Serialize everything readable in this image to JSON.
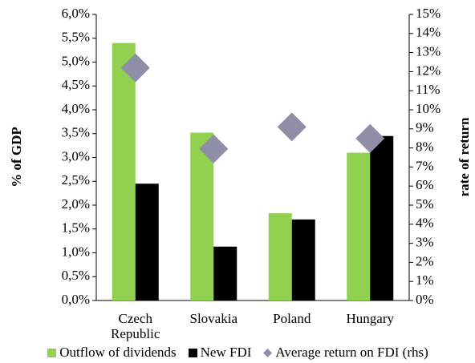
{
  "chart_data": {
    "type": "bar",
    "categories": [
      "Czech Republic",
      "Slovakia",
      "Poland",
      "Hungary"
    ],
    "series": [
      {
        "name": "Outflow of dividends",
        "color": "#92d050",
        "values": [
          5.4,
          3.52,
          1.83,
          3.1
        ]
      },
      {
        "name": "New FDI",
        "color": "#000000",
        "values": [
          2.45,
          1.13,
          1.7,
          3.45
        ]
      },
      {
        "name": "Average return on FDI (rhs)",
        "color": "#8e8ea6",
        "type": "scatter",
        "marker": "diamond",
        "axis": "y2",
        "values": [
          12.2,
          7.95,
          9.1,
          8.5
        ]
      }
    ],
    "y_label": "% of GDP",
    "y2_label": "rate of return",
    "ylim": [
      0,
      6
    ],
    "yticks": [
      {
        "value": 0,
        "label": "0,0%"
      },
      {
        "value": 0.5,
        "label": "0,5%"
      },
      {
        "value": 1,
        "label": "1,0%"
      },
      {
        "value": 1.5,
        "label": "1,5%"
      },
      {
        "value": 2,
        "label": "2,0%"
      },
      {
        "value": 2.5,
        "label": "2,5%"
      },
      {
        "value": 3,
        "label": "3,0%"
      },
      {
        "value": 3.5,
        "label": "3,5%"
      },
      {
        "value": 4,
        "label": "4,0%"
      },
      {
        "value": 4.5,
        "label": "4,5%"
      },
      {
        "value": 5,
        "label": "5,0%"
      },
      {
        "value": 5.5,
        "label": "5,5%"
      },
      {
        "value": 6,
        "label": "6,0%"
      }
    ],
    "y2lim": [
      0,
      15
    ],
    "y2ticks": [
      {
        "value": 0,
        "label": "0%"
      },
      {
        "value": 1,
        "label": "1%"
      },
      {
        "value": 2,
        "label": "2%"
      },
      {
        "value": 3,
        "label": "3%"
      },
      {
        "value": 4,
        "label": "4%"
      },
      {
        "value": 5,
        "label": "5%"
      },
      {
        "value": 6,
        "label": "6%"
      },
      {
        "value": 7,
        "label": "7%"
      },
      {
        "value": 8,
        "label": "8%"
      },
      {
        "value": 9,
        "label": "9%"
      },
      {
        "value": 10,
        "label": "10%"
      },
      {
        "value": 11,
        "label": "11%"
      },
      {
        "value": 12,
        "label": "12%"
      },
      {
        "value": 13,
        "label": "13%"
      },
      {
        "value": 14,
        "label": "14%"
      },
      {
        "value": 15,
        "label": "15%"
      }
    ],
    "grid": false,
    "legend": "bottom"
  }
}
